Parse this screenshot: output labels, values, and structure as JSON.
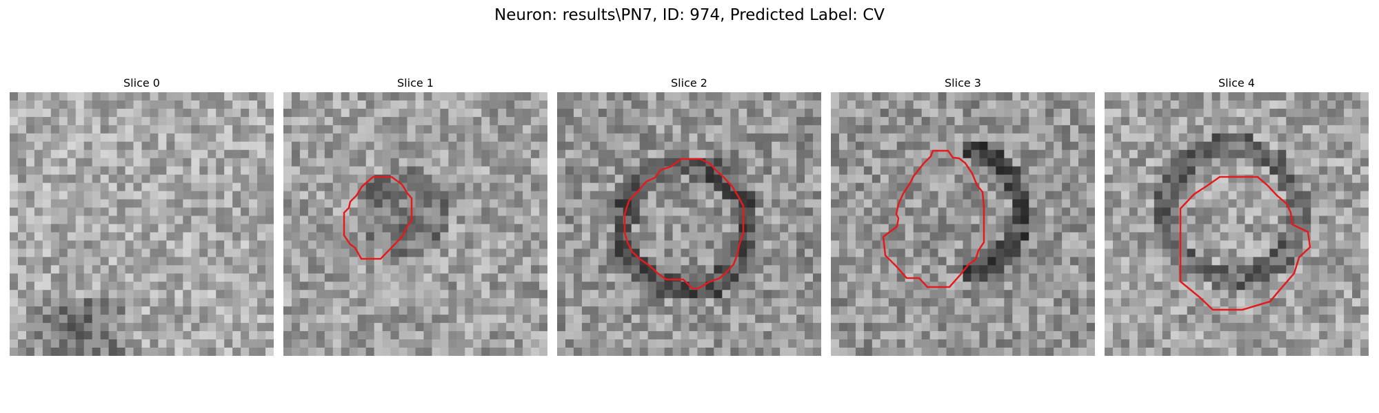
{
  "figure": {
    "title": "Neuron: results\\PN7, ID: 974, Predicted Label: CV",
    "panels": [
      {
        "title": "Slice 0",
        "has_contour": false
      },
      {
        "title": "Slice 1",
        "has_contour": true
      },
      {
        "title": "Slice 2",
        "has_contour": true
      },
      {
        "title": "Slice 3",
        "has_contour": true
      },
      {
        "title": "Slice 4",
        "has_contour": true
      }
    ],
    "contour_color": "#e41a1c",
    "colormap": "gray"
  }
}
